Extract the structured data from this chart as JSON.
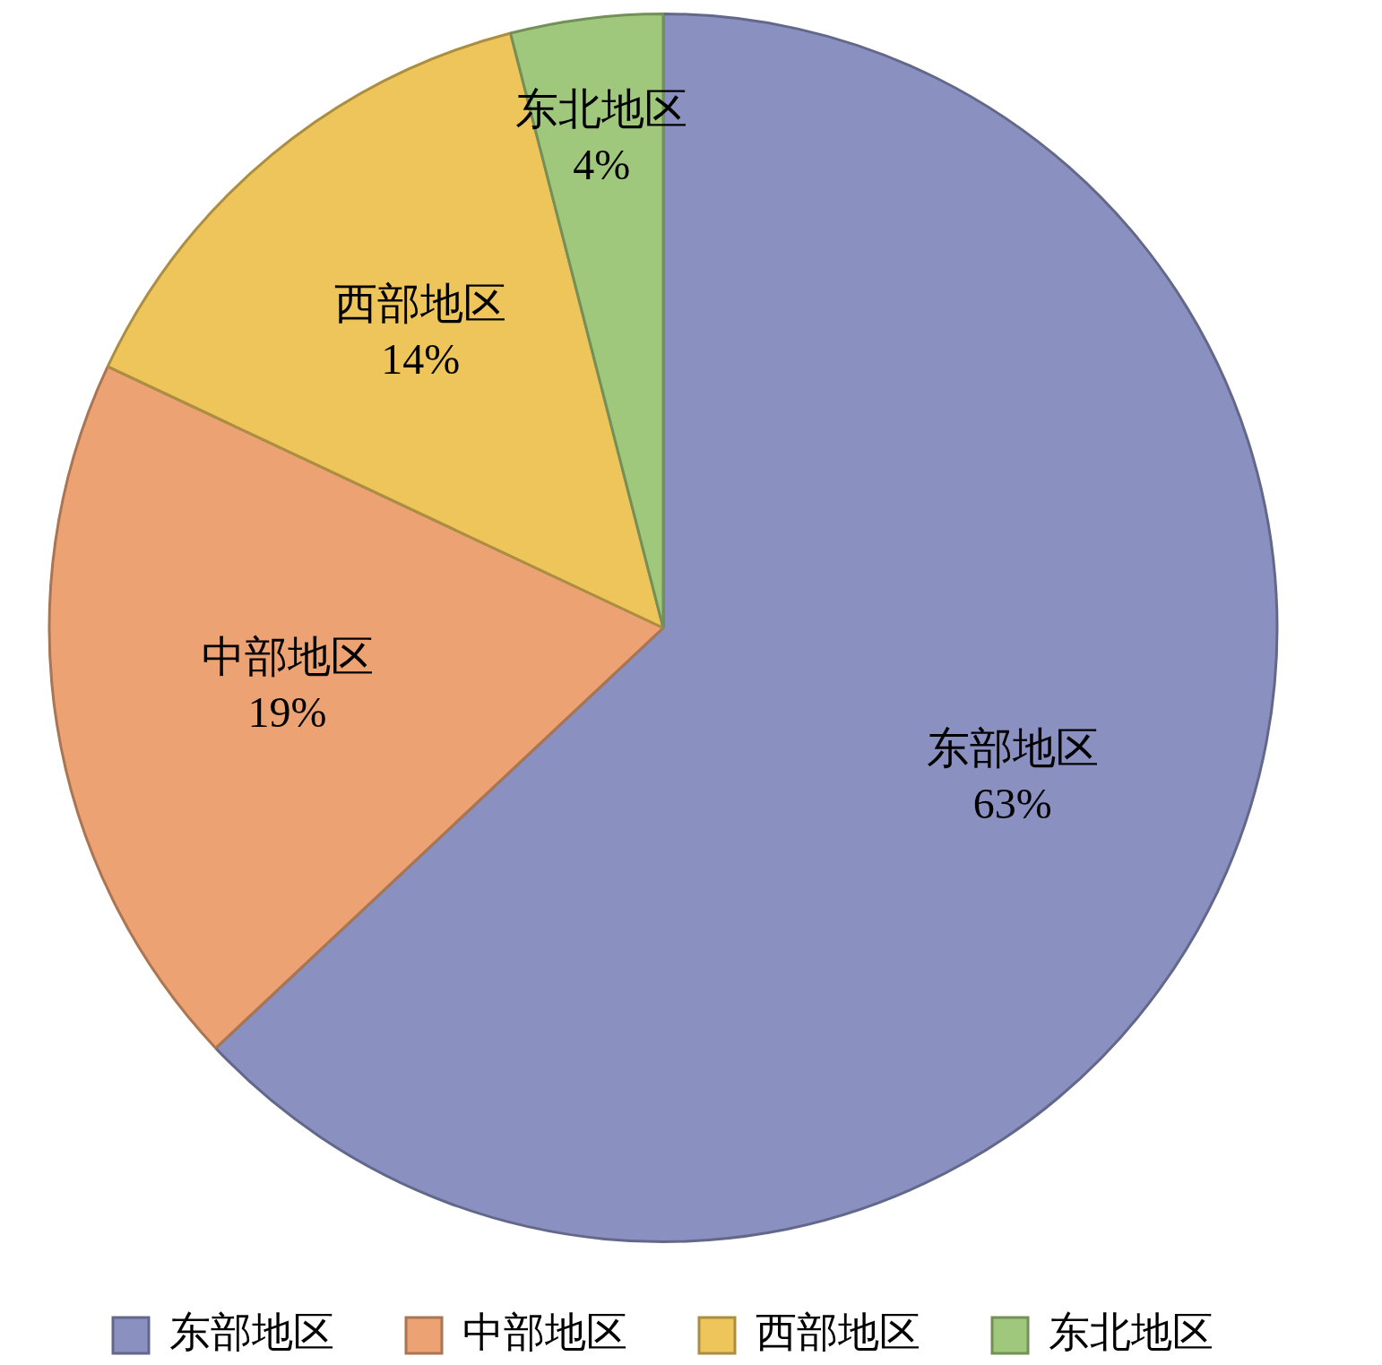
{
  "chart_data": {
    "type": "pie",
    "categories": [
      "东部地区",
      "中部地区",
      "西部地区",
      "东北地区"
    ],
    "values": [
      63,
      19,
      14,
      4
    ],
    "value_labels": [
      "63%",
      "19%",
      "14%",
      "4%"
    ],
    "colors": [
      "#8a90c0",
      "#eca272",
      "#edc55a",
      "#a0c87c"
    ],
    "legend": "bottom"
  }
}
